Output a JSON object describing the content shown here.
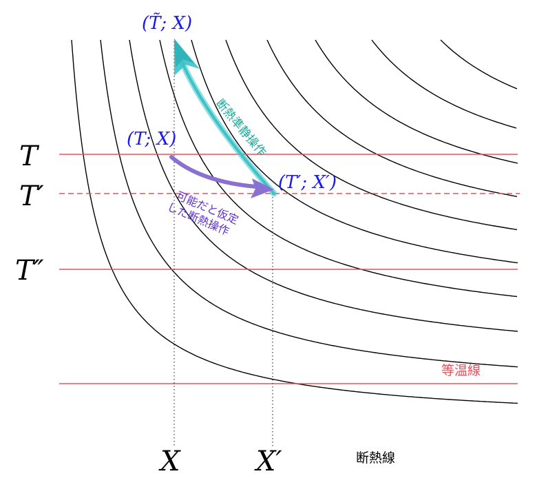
{
  "axis_labels": {
    "T": "T",
    "T_prime": "T′",
    "T_double_prime": "T″",
    "X": "X",
    "X_prime": "X′"
  },
  "points": {
    "T_tilde_X": "(T̃; X)",
    "T_X": "(T; X)",
    "Tp_Xp": "(T′; X′)"
  },
  "annotations": {
    "quasistatic": "断熱準静操作",
    "assumed_line1": "可能だと仮定",
    "assumed_line2": "した断熱操作",
    "isotherm": "等温線",
    "adiabat": "断熱線"
  },
  "colors": {
    "isotherm": "#e8505b",
    "curve": "#000000",
    "point_label": "#1a1aee",
    "quasistatic_arrow": "#3cc3c8",
    "quasistatic_text": "#18a89a",
    "assumed_arrow": "#8a70d0",
    "assumed_text": "#5a2fd0"
  }
}
